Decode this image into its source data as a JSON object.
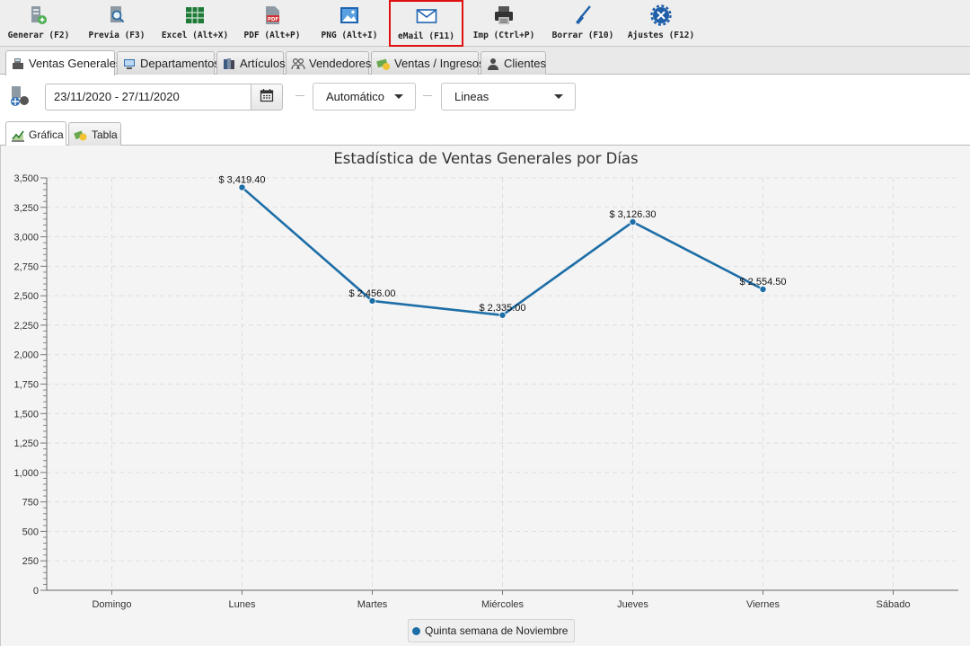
{
  "toolbar": {
    "buttons": [
      {
        "label": "Generar (F2)",
        "icon": "generate-icon"
      },
      {
        "label": "Previa (F3)",
        "icon": "preview-icon"
      },
      {
        "label": "Excel (Alt+X)",
        "icon": "excel-icon"
      },
      {
        "label": "PDF (Alt+P)",
        "icon": "pdf-icon"
      },
      {
        "label": "PNG (Alt+I)",
        "icon": "png-icon"
      },
      {
        "label": "eMail (F11)",
        "icon": "email-icon",
        "selected": true
      },
      {
        "label": "Imp (Ctrl+P)",
        "icon": "print-icon"
      },
      {
        "label": "Borrar (F10)",
        "icon": "broom-icon"
      },
      {
        "label": "Ajustes (F12)",
        "icon": "settings-icon"
      }
    ]
  },
  "main_tabs": [
    {
      "label": "Ventas Generales",
      "icon": "cash-register-icon",
      "active": true
    },
    {
      "label": "Departamentos",
      "icon": "departments-icon"
    },
    {
      "label": "Artículos",
      "icon": "books-icon"
    },
    {
      "label": "Vendedores",
      "icon": "people-icon"
    },
    {
      "label": "Ventas / Ingresos",
      "icon": "money-icon"
    },
    {
      "label": "Clientes",
      "icon": "client-icon"
    }
  ],
  "filters": {
    "date_range": "23/11/2020 - 27/11/2020",
    "mode": "Automático",
    "chart_kind": "Lineas"
  },
  "sub_tabs": [
    {
      "label": "Gráfica",
      "icon": "chart-icon",
      "active": true
    },
    {
      "label": "Tabla",
      "icon": "table-icon"
    }
  ],
  "colors": {
    "series": "#1d6ea7",
    "selected_border": "#e01010"
  },
  "chart_data": {
    "type": "line",
    "title": "Estadística de Ventas Generales por Días",
    "categories": [
      "Domingo",
      "Lunes",
      "Martes",
      "Miércoles",
      "Jueves",
      "Viernes",
      "Sábado"
    ],
    "series": [
      {
        "name": "Quinta semana de Noviembre",
        "values": [
          null,
          3419.4,
          2456.0,
          2335.0,
          3126.3,
          2554.5,
          null
        ],
        "labels": [
          null,
          "$ 3,419.40",
          "$ 2,456.00",
          "$ 2,335.00",
          "$ 3,126.30",
          "$ 2,554.50",
          null
        ]
      }
    ],
    "ylim": [
      0,
      3500
    ],
    "yticks": [
      0,
      250,
      500,
      750,
      1000,
      1250,
      1500,
      1750,
      2000,
      2250,
      2500,
      2750,
      3000,
      3250,
      3500
    ],
    "ytick_labels": [
      "0",
      "250",
      "500",
      "750",
      "1,000",
      "1,250",
      "1,500",
      "1,750",
      "2,000",
      "2,250",
      "2,500",
      "2,750",
      "3,000",
      "3,250",
      "3,500"
    ],
    "grid": true,
    "legend_position": "bottom-center"
  }
}
